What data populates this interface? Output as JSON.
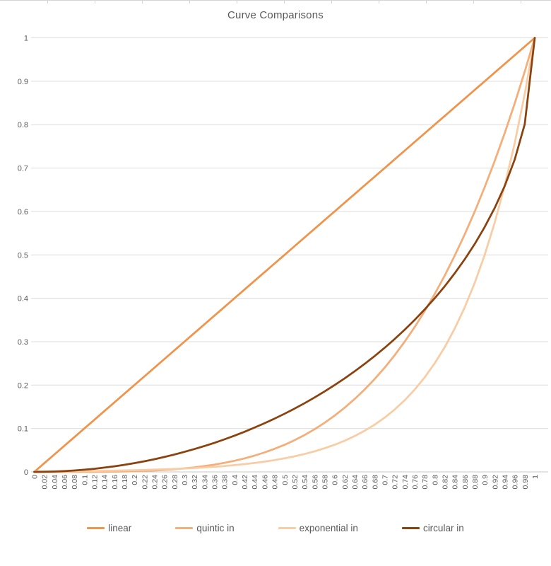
{
  "top_edge": {
    "note": "ticked edge strip"
  },
  "chart_data": {
    "type": "line",
    "title": "Curve Comparisons",
    "xlabel": "",
    "ylabel": "",
    "xlim": [
      0,
      1
    ],
    "ylim": [
      0,
      1
    ],
    "grid": "horizontal",
    "legend_position": "bottom",
    "colors": {
      "gridline": "#dcdcdc",
      "axis_line": "#c8c8c8",
      "tick_text": "#595959",
      "title_text": "#595959"
    },
    "x_tick_labels": [
      "0",
      "0.02",
      "0.04",
      "0.06",
      "0.08",
      "0.1",
      "0.12",
      "0.14",
      "0.16",
      "0.18",
      "0.2",
      "0.22",
      "0.24",
      "0.26",
      "0.28",
      "0.3",
      "0.32",
      "0.34",
      "0.36",
      "0.38",
      "0.4",
      "0.42",
      "0.44",
      "0.46",
      "0.48",
      "0.5",
      "0.52",
      "0.54",
      "0.56",
      "0.58",
      "0.6",
      "0.62",
      "0.64",
      "0.66",
      "0.68",
      "0.7",
      "0.72",
      "0.74",
      "0.76",
      "0.78",
      "0.8",
      "0.82",
      "0.84",
      "0.86",
      "0.88",
      "0.9",
      "0.92",
      "0.94",
      "0.96",
      "0.98",
      "1"
    ],
    "y_tick_labels": [
      "0",
      "0.1",
      "0.2",
      "0.3",
      "0.4",
      "0.5",
      "0.6",
      "0.7",
      "0.8",
      "0.9",
      "1"
    ],
    "y_ticks": [
      0,
      0.1,
      0.2,
      0.3,
      0.4,
      0.5,
      0.6,
      0.7,
      0.8,
      0.9,
      1
    ],
    "x": [
      0,
      0.02,
      0.04,
      0.06,
      0.08,
      0.1,
      0.12,
      0.14,
      0.16,
      0.18,
      0.2,
      0.22,
      0.24,
      0.26,
      0.28,
      0.3,
      0.32,
      0.34,
      0.36,
      0.38,
      0.4,
      0.42,
      0.44,
      0.46,
      0.48,
      0.5,
      0.52,
      0.54,
      0.56,
      0.58,
      0.6,
      0.62,
      0.64,
      0.66,
      0.68,
      0.7,
      0.72,
      0.74,
      0.76,
      0.78,
      0.8,
      0.82,
      0.84,
      0.86,
      0.88,
      0.9,
      0.92,
      0.94,
      0.96,
      0.98,
      1
    ],
    "series": [
      {
        "name": "linear",
        "color": "#f0934b",
        "values": [
          0,
          0.02,
          0.04,
          0.06,
          0.08,
          0.1,
          0.12,
          0.14,
          0.16,
          0.18,
          0.2,
          0.22,
          0.24,
          0.26,
          0.28,
          0.3,
          0.32,
          0.34,
          0.36,
          0.38,
          0.4,
          0.42,
          0.44,
          0.46,
          0.48,
          0.5,
          0.52,
          0.54,
          0.56,
          0.58,
          0.6,
          0.62,
          0.64,
          0.66,
          0.68,
          0.7,
          0.72,
          0.74,
          0.76,
          0.78,
          0.8,
          0.82,
          0.84,
          0.86,
          0.88,
          0.9,
          0.92,
          0.94,
          0.96,
          0.98,
          1
        ]
      },
      {
        "name": "quintic in",
        "color": "#f3ae79",
        "values": [
          0,
          0,
          0,
          0,
          0,
          0.0001,
          0.0002,
          0.0004,
          0.0007,
          0.001,
          0.0016,
          0.0023,
          0.0033,
          0.0046,
          0.0061,
          0.0081,
          0.0105,
          0.0134,
          0.0168,
          0.0209,
          0.0256,
          0.0311,
          0.0375,
          0.0448,
          0.0531,
          0.0625,
          0.0731,
          0.085,
          0.0983,
          0.1132,
          0.1296,
          0.1478,
          0.1678,
          0.1897,
          0.2138,
          0.2401,
          0.2687,
          0.2999,
          0.3336,
          0.3702,
          0.4096,
          0.4521,
          0.4979,
          0.547,
          0.5997,
          0.6561,
          0.7164,
          0.7807,
          0.8493,
          0.9224,
          1
        ]
      },
      {
        "name": "exponential in",
        "color": "#f8cda5",
        "values": [
          0.001,
          0.0011,
          0.0013,
          0.0015,
          0.0017,
          0.002,
          0.0022,
          0.0026,
          0.003,
          0.0034,
          0.0039,
          0.0045,
          0.0052,
          0.0059,
          0.0068,
          0.0078,
          0.009,
          0.0103,
          0.0118,
          0.0136,
          0.0156,
          0.0179,
          0.0206,
          0.0237,
          0.0272,
          0.0313,
          0.0359,
          0.0412,
          0.0474,
          0.0544,
          0.0625,
          0.0718,
          0.0825,
          0.0947,
          0.1088,
          0.125,
          0.1436,
          0.1649,
          0.1895,
          0.2176,
          0.25,
          0.2872,
          0.3299,
          0.3789,
          0.4353,
          0.5,
          0.5743,
          0.6598,
          0.7579,
          0.8706,
          1
        ]
      },
      {
        "name": "circular in",
        "color": "#8a420f",
        "values": [
          0,
          0.0002,
          0.0008,
          0.0018,
          0.0032,
          0.005,
          0.0072,
          0.0099,
          0.0129,
          0.0163,
          0.0202,
          0.0245,
          0.0292,
          0.0344,
          0.0401,
          0.0461,
          0.0526,
          0.0596,
          0.067,
          0.075,
          0.0835,
          0.0925,
          0.102,
          0.1121,
          0.1227,
          0.134,
          0.1458,
          0.1583,
          0.1715,
          0.1854,
          0.2,
          0.2154,
          0.2316,
          0.2487,
          0.2668,
          0.2859,
          0.306,
          0.3274,
          0.3501,
          0.3742,
          0.4,
          0.4276,
          0.4574,
          0.4897,
          0.525,
          0.5641,
          0.6081,
          0.6588,
          0.72,
          0.801,
          1
        ]
      }
    ]
  }
}
